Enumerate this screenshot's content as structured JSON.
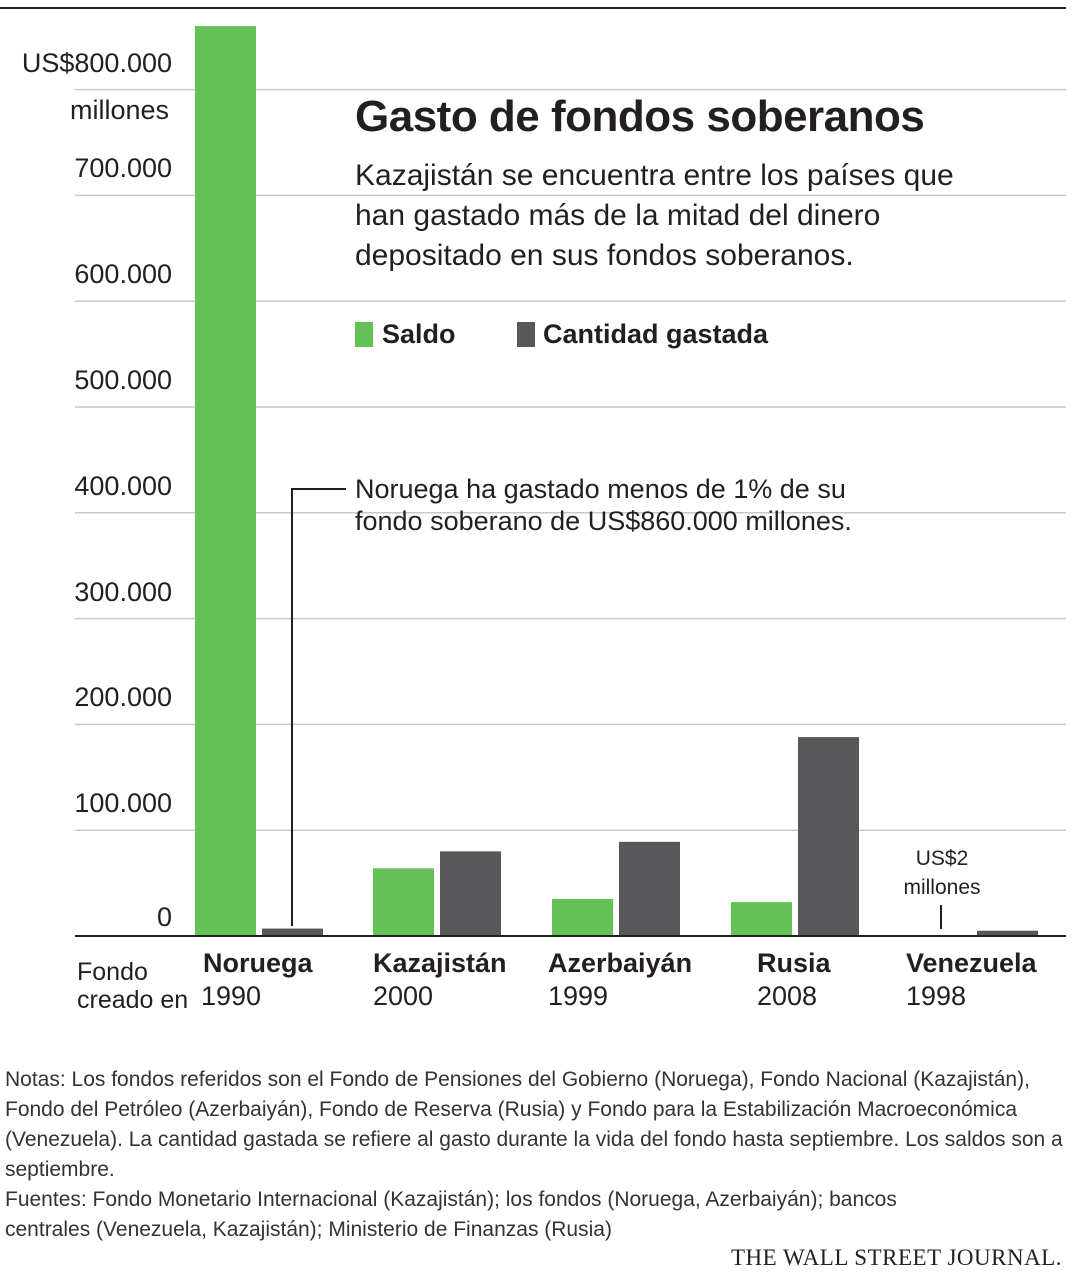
{
  "colors": {
    "saldo": "#63c156",
    "gastada": "#58585a",
    "grid": "#c8c8c8",
    "axis": "#231f20"
  },
  "chart_data": {
    "type": "bar",
    "title": "Gasto de fondos soberanos",
    "subtitle": "Kazajistán se encuentra entre los países que han gastado más de la mitad del dinero depositado en sus fondos soberanos.",
    "categories": [
      "Noruega",
      "Kazajistán",
      "Azerbaiyán",
      "Rusia",
      "Venezuela"
    ],
    "fund_created_label": "Fondo creado en",
    "years": [
      "1990",
      "2000",
      "1999",
      "2008",
      "1998"
    ],
    "series": [
      {
        "name": "Saldo",
        "color": "#63c156",
        "values": [
          860000,
          64000,
          35000,
          32000,
          0
        ]
      },
      {
        "name": "Cantidad gastada",
        "color": "#58585a",
        "values": [
          7000,
          80000,
          89000,
          188000,
          5000
        ]
      }
    ],
    "ylim": [
      0,
      860000
    ],
    "yticks": [
      0,
      100000,
      200000,
      300000,
      400000,
      500000,
      600000,
      700000,
      800000
    ],
    "ytick_labels": [
      "0",
      "100.000",
      "200.000",
      "300.000",
      "400.000",
      "500.000",
      "600.000",
      "700.000",
      "US$800.000"
    ],
    "yunit_label": "millones",
    "grid": true,
    "legend_position": "top",
    "annotations": {
      "noruega": "Noruega ha gastado menos de 1% de su fondo soberano de US$860.000 millones.",
      "venezuela": "US$2 millones"
    }
  },
  "notes": {
    "notas": "Notas: Los fondos referidos son el Fondo de Pensiones del Gobierno (Noruega), Fondo Nacional (Kazajistán), Fondo del Petróleo (Azerbaiyán), Fondo de Reserva (Rusia) y Fondo para la Estabilización Macroeconómica (Venezuela). La cantidad gastada se refiere al gasto durante la vida del fondo hasta septiembre. Los saldos son a septiembre.",
    "fuentes": "Fuentes: Fondo Monetario Internacional (Kazajistán); los fondos (Noruega, Azerbaiyán); bancos centrales (Venezuela, Kazajistán); Ministerio de Finanzas (Rusia)"
  },
  "source_logo": "THE WALL STREET JOURNAL."
}
